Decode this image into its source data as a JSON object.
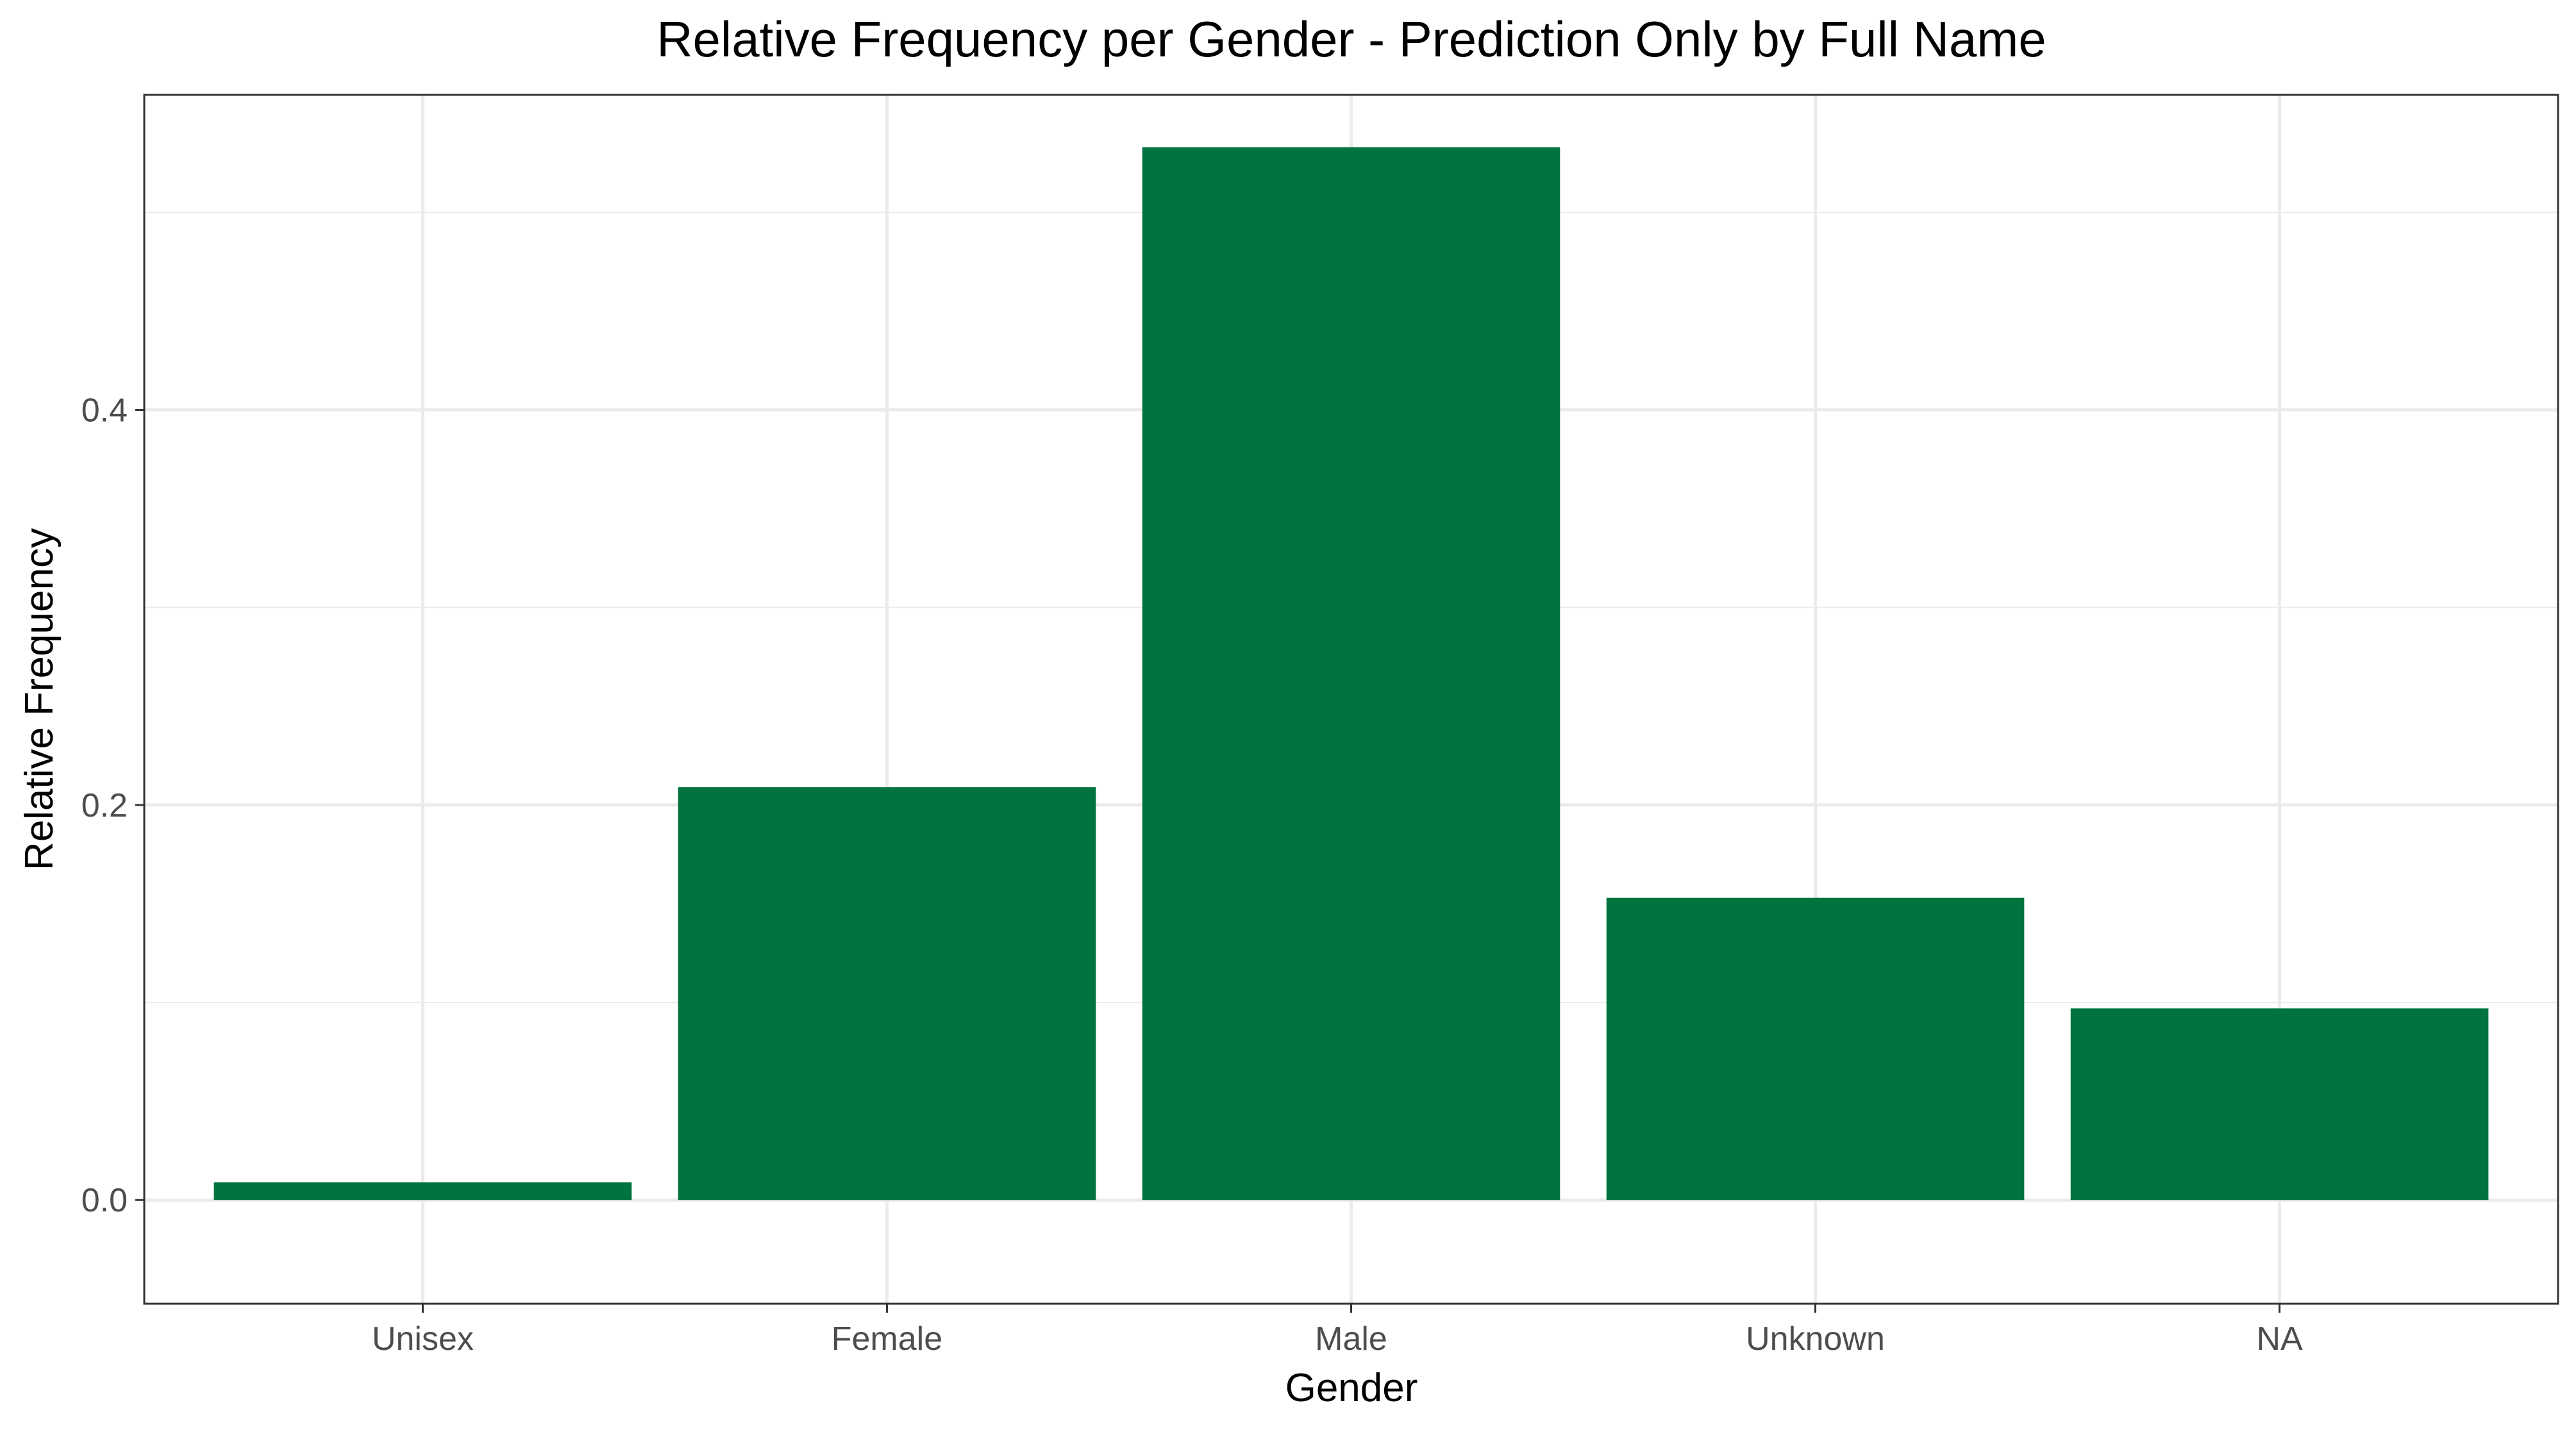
{
  "chart_data": {
    "type": "bar",
    "title": "Relative Frequency per Gender - Prediction Only by Full Name",
    "xlabel": "Gender",
    "ylabel": "Relative Frequency",
    "categories": [
      "Unisex",
      "Female",
      "Male",
      "Unknown",
      "NA"
    ],
    "values": [
      0.009,
      0.209,
      0.533,
      0.153,
      0.097
    ],
    "ylim": [
      -0.0525,
      0.5595
    ],
    "yticks": [
      0.0,
      0.2,
      0.4
    ],
    "ytick_labels": [
      "0.0",
      "0.2",
      "0.4"
    ],
    "grid": true,
    "legend": "none",
    "bar_color": "#00733f",
    "grid_color": "#ebebeb",
    "panel_border_color": "#333333"
  }
}
